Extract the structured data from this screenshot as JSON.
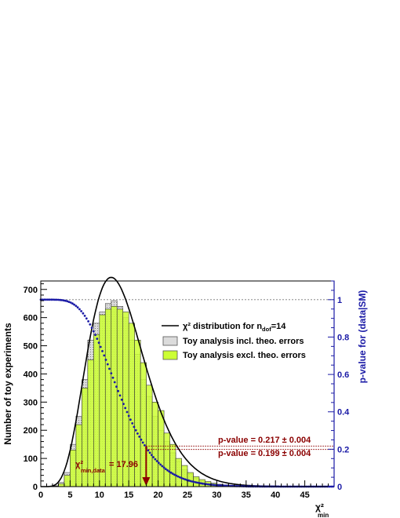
{
  "chart_data": {
    "type": "bar",
    "xlabel": "χ²",
    "xlabel_sub": "min",
    "ylabel_left": "Number of toy experiments",
    "ylabel_right": "p-value for (data|SM)",
    "xlim": [
      0,
      50
    ],
    "ylim_left": [
      0,
      730
    ],
    "ylim_right": [
      0,
      1.1
    ],
    "x_ticks": [
      0,
      5,
      10,
      15,
      20,
      25,
      30,
      35,
      40,
      45
    ],
    "y_ticks_left": [
      0,
      100,
      200,
      300,
      400,
      500,
      600,
      700
    ],
    "y_ticks_right": [
      0,
      0.2,
      0.4,
      0.6,
      0.8,
      1
    ],
    "bin_width": 1,
    "series": [
      {
        "name": "Toy analysis incl. theo. errors",
        "role": "hist_incl",
        "x": [
          2,
          3,
          4,
          5,
          6,
          7,
          8,
          9,
          10,
          11,
          12,
          13,
          14,
          15,
          16,
          17,
          18,
          19,
          20,
          21,
          22,
          23,
          24,
          25,
          26,
          27,
          28,
          29,
          30,
          31,
          32,
          33,
          34,
          35,
          36
        ],
        "values": [
          3,
          15,
          50,
          150,
          250,
          380,
          520,
          580,
          620,
          650,
          660,
          640,
          600,
          520,
          470,
          380,
          320,
          250,
          200,
          160,
          120,
          90,
          60,
          45,
          30,
          20,
          15,
          10,
          8,
          6,
          4,
          3,
          2,
          1,
          1
        ],
        "color": "#dcdcdc"
      },
      {
        "name": "Toy analysis excl. theo. errors",
        "role": "hist_excl",
        "x": [
          2,
          3,
          4,
          5,
          6,
          7,
          8,
          9,
          10,
          11,
          12,
          13,
          14,
          15,
          16,
          17,
          18,
          19,
          20,
          21,
          22,
          23,
          24,
          25,
          26,
          27,
          28,
          29,
          30,
          31,
          32,
          33,
          34,
          35,
          36
        ],
        "values": [
          2,
          10,
          40,
          130,
          220,
          350,
          450,
          540,
          610,
          630,
          640,
          630,
          620,
          580,
          520,
          440,
          360,
          300,
          270,
          190,
          150,
          100,
          75,
          50,
          35,
          25,
          18,
          12,
          8,
          6,
          4,
          3,
          2,
          1,
          1
        ],
        "color": "#ccff33"
      },
      {
        "name": "χ² distribution for n",
        "name_sub": "dof",
        "name_suffix": "=14",
        "role": "chi2_curve",
        "dof": 14,
        "scale": 9250,
        "color": "#000000"
      },
      {
        "name": "p-value",
        "role": "pvalue_curve",
        "dof": 14,
        "axis": "right",
        "color": "#1a1aa6"
      }
    ],
    "annotations": {
      "chi2_data_label": "χ²",
      "chi2_data_sub": "min,data",
      "chi2_data_value": "= 17.96",
      "chi2_data_x": 17.96,
      "pvalue_1": "p-value = 0.217 ± 0.004",
      "pvalue_1_y": 0.217,
      "pvalue_2": "p-value = 0.199 ± 0.004",
      "pvalue_2_y": 0.199,
      "reference_line_y_right": 1.0
    },
    "legend_position": "top-right",
    "grid": false
  },
  "colors": {
    "annotation": "#8b0000",
    "right_axis": "#1a1aa6",
    "hist_incl": "#dcdcdc",
    "hist_excl": "#ccff33"
  }
}
